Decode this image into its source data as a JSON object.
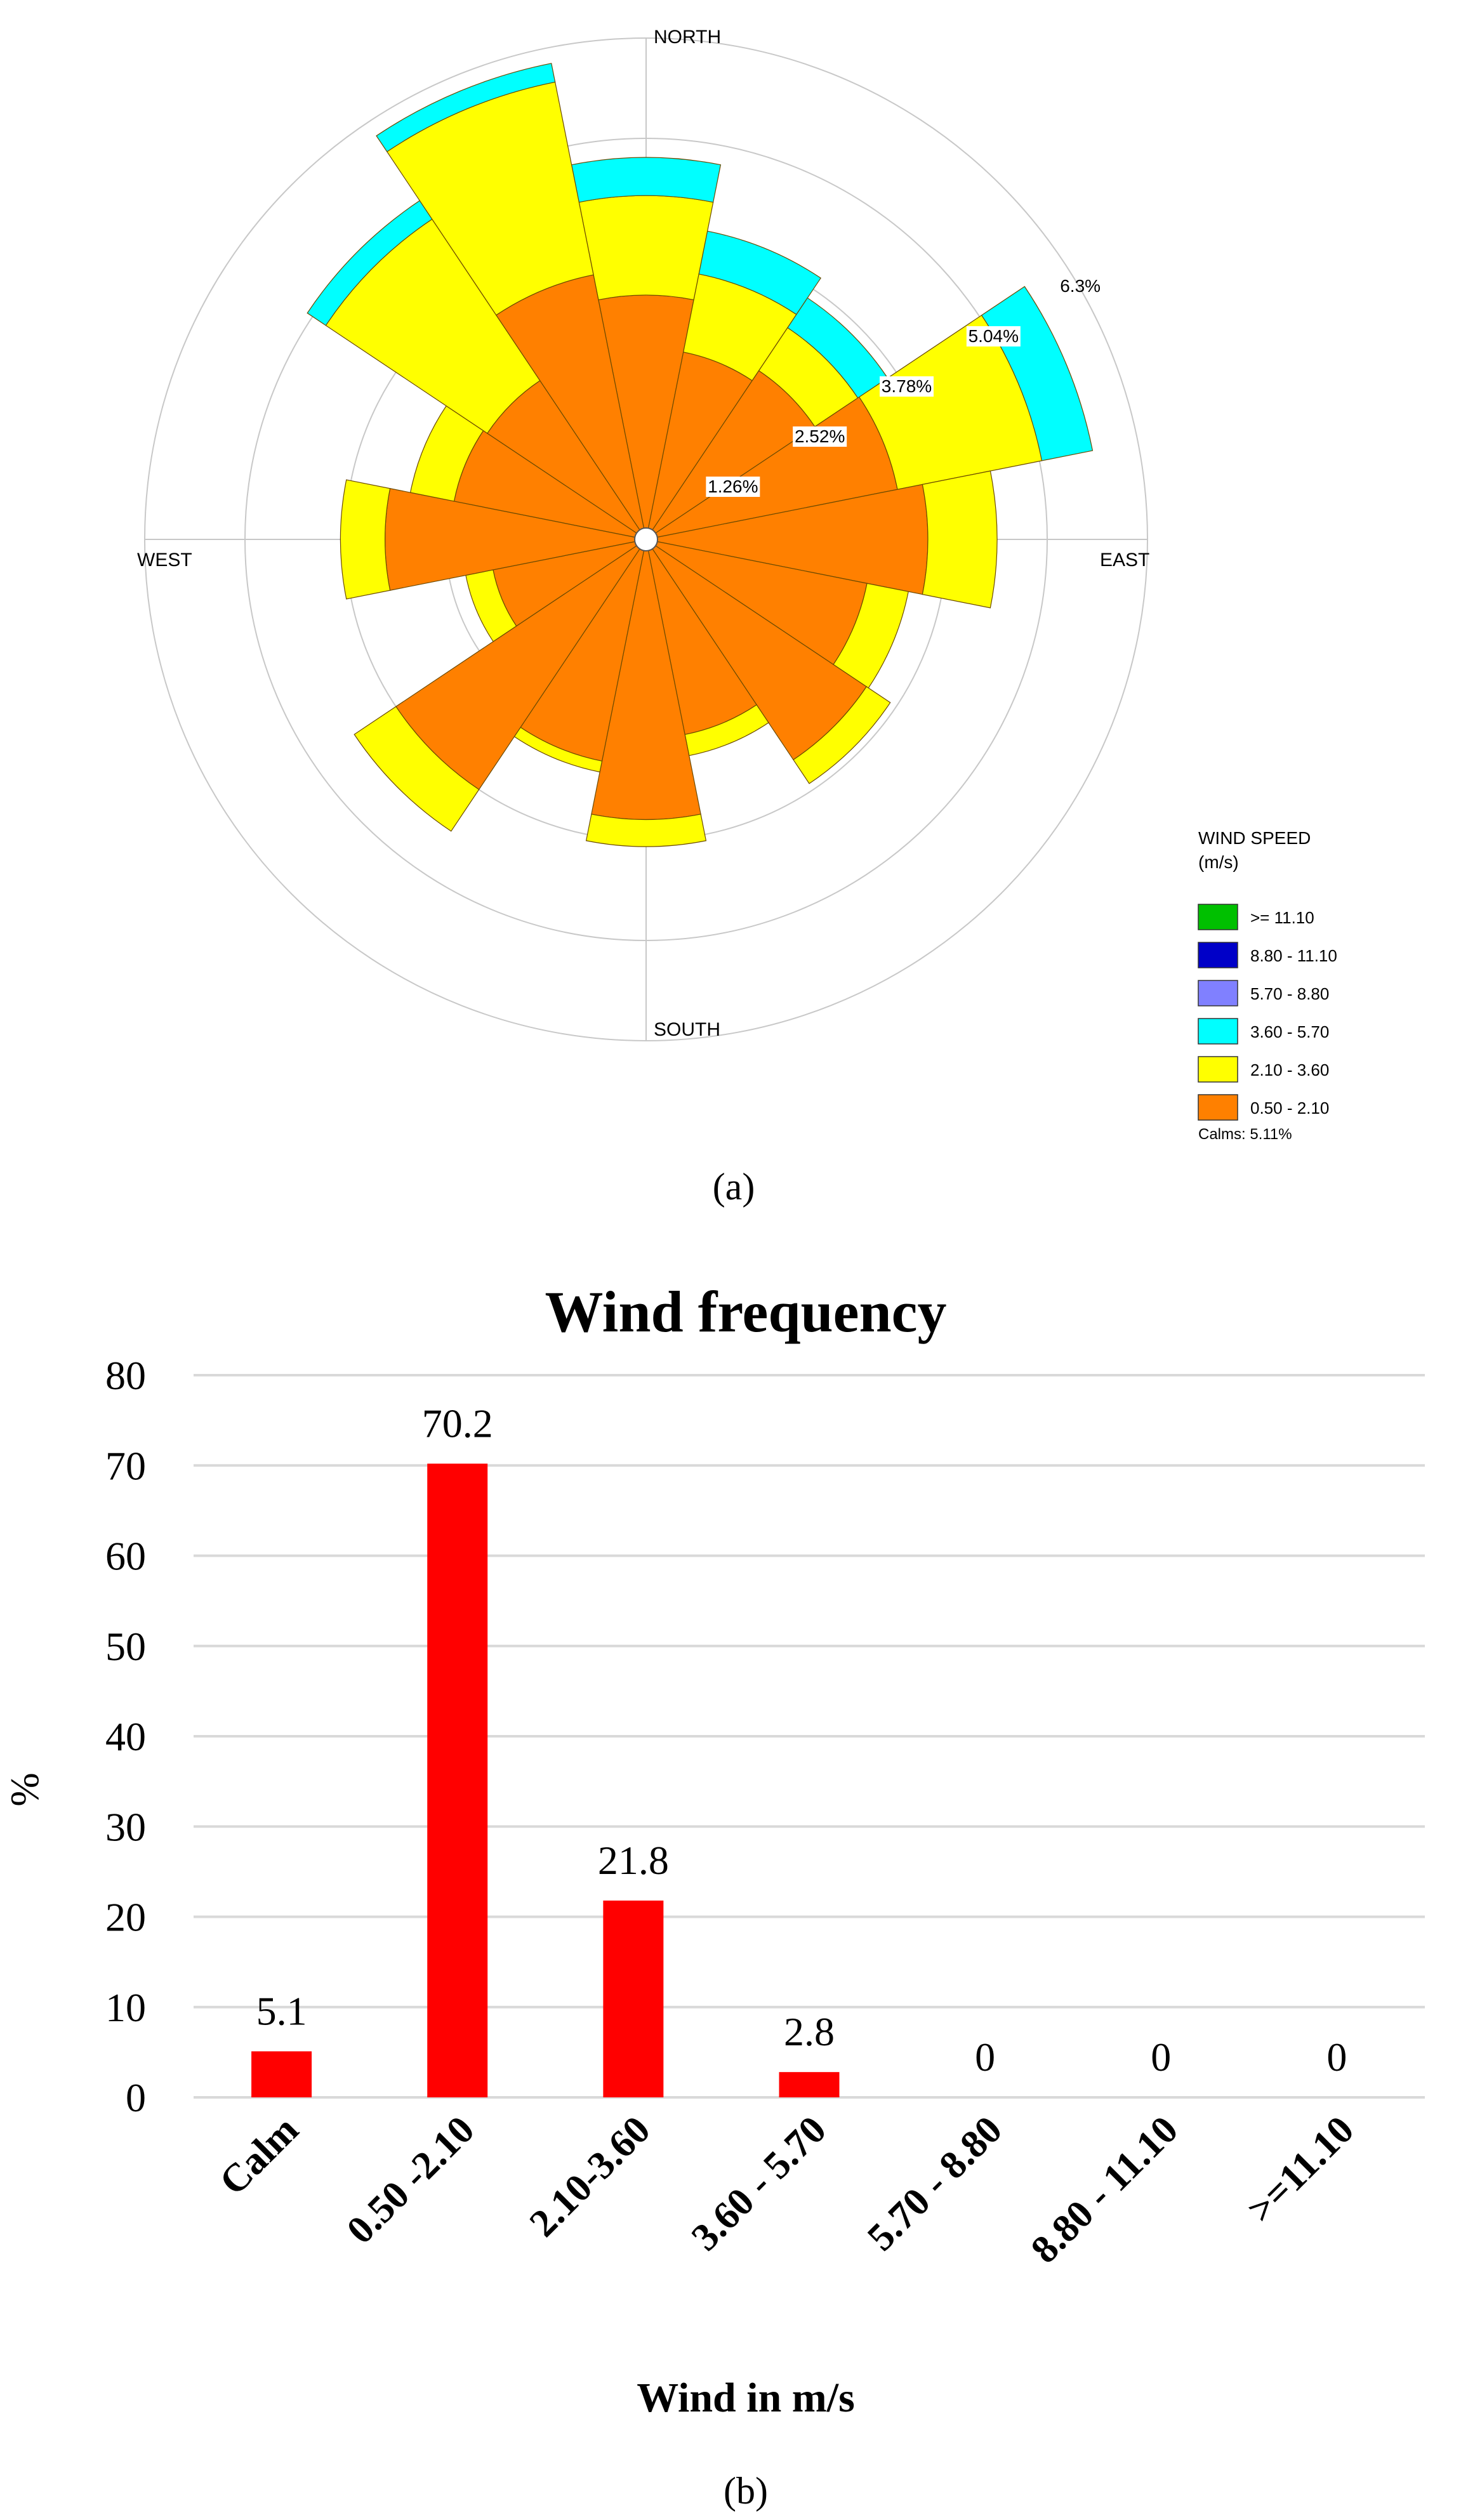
{
  "figure": {
    "panel_a_label": "(a)",
    "panel_b_label": "(b)"
  },
  "chart_data": [
    {
      "type": "wind-rose",
      "directions": [
        "NORTH",
        "EAST",
        "SOUTH",
        "WEST"
      ],
      "rings": [
        1.26,
        2.52,
        3.78,
        5.04,
        6.3
      ],
      "ring_labels": [
        "1.26%",
        "2.52%",
        "3.78%",
        "5.04%",
        "6.3%"
      ],
      "legend": {
        "title": "WIND SPEED",
        "subtitle": "(m/s)",
        "calms": "Calms: 5.11%",
        "items": [
          {
            "label": ">= 11.10",
            "color": "#00c000"
          },
          {
            "label": "8.80 - 11.10",
            "color": "#0000c8"
          },
          {
            "label": "5.70 - 8.80",
            "color": "#8080ff"
          },
          {
            "label": "3.60 - 5.70",
            "color": "#00ffff"
          },
          {
            "label": "2.10 - 3.60",
            "color": "#ffff00"
          },
          {
            "label": "0.50 - 2.10",
            "color": "#ff8000"
          }
        ]
      },
      "bin_colors": [
        "#ff8000",
        "#ffff00",
        "#00ffff"
      ],
      "sectors": [
        {
          "angle": 0,
          "values": [
            3.07,
            4.32,
            4.8
          ]
        },
        {
          "angle": 22.5,
          "values": [
            2.4,
            3.4,
            3.95
          ]
        },
        {
          "angle": 45,
          "values": [
            2.55,
            3.2,
            3.65
          ]
        },
        {
          "angle": 67.5,
          "values": [
            3.22,
            5.07,
            5.72
          ]
        },
        {
          "angle": 90,
          "values": [
            3.54,
            4.41,
            4.41
          ]
        },
        {
          "angle": 112.5,
          "values": [
            2.83,
            3.36,
            3.36
          ]
        },
        {
          "angle": 135,
          "values": [
            3.33,
            3.69,
            3.69
          ]
        },
        {
          "angle": 157.5,
          "values": [
            2.5,
            2.77,
            2.77
          ]
        },
        {
          "angle": 180,
          "values": [
            3.52,
            3.86,
            3.86
          ]
        },
        {
          "angle": 202.5,
          "values": [
            2.84,
            2.98,
            2.98
          ]
        },
        {
          "angle": 225,
          "values": [
            3.78,
            4.41,
            4.41
          ]
        },
        {
          "angle": 247.5,
          "values": [
            1.96,
            2.31,
            2.31
          ]
        },
        {
          "angle": 270,
          "values": [
            3.28,
            3.84,
            3.84
          ]
        },
        {
          "angle": 292.5,
          "values": [
            2.46,
            3.02,
            3.02
          ]
        },
        {
          "angle": 315,
          "values": [
            2.4,
            4.84,
            5.12
          ]
        },
        {
          "angle": 337.5,
          "values": [
            3.39,
            5.86,
            6.1
          ]
        }
      ]
    },
    {
      "type": "bar",
      "title": "Wind frequency",
      "xlabel": "Wind in m/s",
      "ylabel": "%",
      "ylim": [
        0,
        80
      ],
      "yticks": [
        "0",
        "10",
        "20",
        "30",
        "40",
        "50",
        "60",
        "70",
        "80"
      ],
      "categories": [
        "Calm",
        "0.50 -2.10",
        "2.10-3.60",
        "3.60 - 5.70",
        "5.70 - 8.80",
        "8.80 - 11.10",
        ">=11.10"
      ],
      "values": [
        5.1,
        70.2,
        21.8,
        2.8,
        0,
        0,
        0
      ],
      "value_labels": [
        "5.1",
        "70.2",
        "21.8",
        "2.8",
        "0",
        "0",
        "0"
      ],
      "bar_color": "#ff0000",
      "grid": true
    }
  ]
}
